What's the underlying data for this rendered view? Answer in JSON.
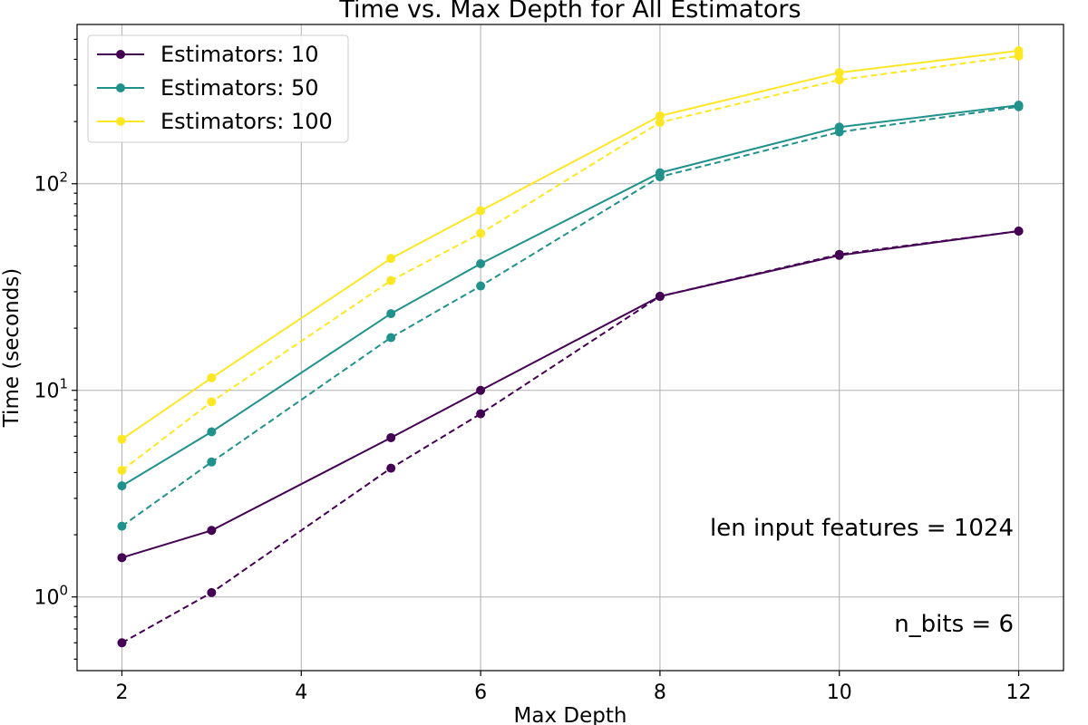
{
  "chart_data": {
    "type": "line",
    "title": "Time vs. Max Depth for All Estimators",
    "xlabel": "Max Depth",
    "ylabel": "Time (seconds)",
    "xlim": [
      1.5,
      12.5
    ],
    "ylim": [
      0.44,
      590
    ],
    "yscale": "log",
    "x_ticks": [
      2,
      4,
      6,
      8,
      10,
      12
    ],
    "y_ticks": [
      {
        "value": 1,
        "label": "10",
        "exp": "0"
      },
      {
        "value": 10,
        "label": "10",
        "exp": "1"
      },
      {
        "value": 100,
        "label": "10",
        "exp": "2"
      }
    ],
    "grid": true,
    "legend_position": "top-left",
    "x": [
      2,
      3,
      5,
      6,
      8,
      10,
      12
    ],
    "series": [
      {
        "name": "Estimators: 10",
        "color": "#440154",
        "style": "solid",
        "values": [
          1.55,
          2.1,
          5.9,
          10.0,
          28.5,
          45.0,
          59.0
        ]
      },
      {
        "name": "",
        "legend": false,
        "color": "#440154",
        "style": "dashed",
        "values": [
          0.6,
          1.05,
          4.2,
          7.7,
          28.5,
          45.5,
          59.0
        ]
      },
      {
        "name": "Estimators: 50",
        "color": "#21918c",
        "style": "solid",
        "values": [
          3.45,
          6.3,
          23.5,
          41.0,
          113.0,
          188.0,
          240.0
        ]
      },
      {
        "name": "",
        "legend": false,
        "color": "#21918c",
        "style": "dashed",
        "values": [
          2.2,
          4.5,
          18.0,
          32.0,
          108.0,
          178.0,
          236.0
        ]
      },
      {
        "name": "Estimators: 100",
        "color": "#fde725",
        "style": "solid",
        "values": [
          5.8,
          11.5,
          43.5,
          74.0,
          213.0,
          345.0,
          440.0
        ]
      },
      {
        "name": "",
        "legend": false,
        "color": "#fde725",
        "style": "dashed",
        "values": [
          4.1,
          8.8,
          34.0,
          57.5,
          198.0,
          318.0,
          415.0
        ]
      }
    ],
    "annotations": [
      {
        "text": "len input features = 1024"
      },
      {
        "text": "n_bits = 6"
      }
    ]
  }
}
